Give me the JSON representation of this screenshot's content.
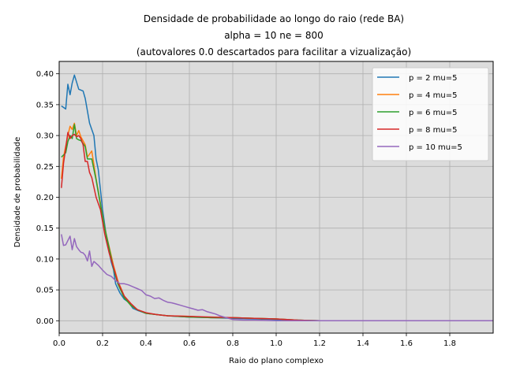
{
  "chart_data": {
    "type": "line",
    "title_lines": [
      "Densidade de probabilidade ao longo do raio (rede BA)",
      "alpha = 10 ne = 800",
      "(autovalores 0.0 descartados para facilitar a vizualização)"
    ],
    "xlabel": "Raio do plano complexo",
    "ylabel": "Densidade de probabilidade",
    "xlim": [
      0.0,
      2.0
    ],
    "ylim": [
      -0.02,
      0.42
    ],
    "xticks": [
      "0.0",
      "0.2",
      "0.4",
      "0.6",
      "0.8",
      "1.0",
      "1.2",
      "1.4",
      "1.6",
      "1.8"
    ],
    "yticks": [
      "0.00",
      "0.05",
      "0.10",
      "0.15",
      "0.20",
      "0.25",
      "0.30",
      "0.35",
      "0.40"
    ],
    "grid": true,
    "background": "#dcdcdc",
    "grid_color": "#b0b0b0",
    "legend_position": "top-right",
    "series": [
      {
        "name": "p = 2 mu=5",
        "color": "#1f77b4",
        "x": [
          0.01,
          0.03,
          0.04,
          0.05,
          0.06,
          0.07,
          0.09,
          0.11,
          0.12,
          0.14,
          0.16,
          0.17,
          0.18,
          0.2,
          0.22,
          0.24,
          0.25,
          0.26,
          0.28,
          0.3,
          0.32,
          0.34,
          0.36,
          0.4,
          0.5,
          0.6,
          0.7,
          0.8,
          0.9,
          1.0,
          1.2,
          1.4,
          1.6,
          1.8,
          2.0
        ],
        "y": [
          0.348,
          0.343,
          0.383,
          0.366,
          0.385,
          0.398,
          0.375,
          0.372,
          0.36,
          0.32,
          0.3,
          0.262,
          0.245,
          0.18,
          0.13,
          0.095,
          0.083,
          0.06,
          0.045,
          0.035,
          0.03,
          0.02,
          0.017,
          0.012,
          0.008,
          0.006,
          0.005,
          0.004,
          0.003,
          0.002,
          0.0,
          0.0,
          0.0,
          0.0,
          0.0
        ]
      },
      {
        "name": "p = 4 mu=5",
        "color": "#ff7f0e",
        "x": [
          0.01,
          0.02,
          0.04,
          0.05,
          0.06,
          0.07,
          0.08,
          0.09,
          0.1,
          0.12,
          0.13,
          0.15,
          0.17,
          0.19,
          0.21,
          0.23,
          0.25,
          0.27,
          0.3,
          0.33,
          0.36,
          0.4,
          0.45,
          0.5,
          0.6,
          0.7,
          0.8,
          0.9,
          1.0,
          1.1,
          1.2,
          1.4,
          1.6,
          1.8,
          2.0
        ],
        "y": [
          0.23,
          0.265,
          0.3,
          0.315,
          0.31,
          0.32,
          0.3,
          0.308,
          0.298,
          0.285,
          0.265,
          0.275,
          0.23,
          0.19,
          0.15,
          0.12,
          0.09,
          0.065,
          0.04,
          0.025,
          0.018,
          0.012,
          0.01,
          0.008,
          0.007,
          0.005,
          0.005,
          0.004,
          0.003,
          0.001,
          0.0,
          0.0,
          0.0,
          0.0,
          0.0
        ]
      },
      {
        "name": "p = 6 mu=5",
        "color": "#2ca02c",
        "x": [
          0.01,
          0.03,
          0.04,
          0.05,
          0.06,
          0.07,
          0.08,
          0.09,
          0.1,
          0.12,
          0.13,
          0.15,
          0.17,
          0.19,
          0.21,
          0.23,
          0.25,
          0.27,
          0.3,
          0.33,
          0.36,
          0.4,
          0.45,
          0.5,
          0.6,
          0.7,
          0.8,
          0.9,
          1.0,
          1.1,
          1.2,
          1.4,
          1.6,
          1.8,
          2.0
        ],
        "y": [
          0.265,
          0.272,
          0.29,
          0.3,
          0.295,
          0.318,
          0.295,
          0.293,
          0.292,
          0.282,
          0.262,
          0.262,
          0.228,
          0.188,
          0.15,
          0.118,
          0.085,
          0.06,
          0.037,
          0.025,
          0.018,
          0.012,
          0.01,
          0.008,
          0.006,
          0.005,
          0.005,
          0.004,
          0.003,
          0.001,
          0.0,
          0.0,
          0.0,
          0.0,
          0.0
        ]
      },
      {
        "name": "p = 8 mu=5",
        "color": "#d62728",
        "x": [
          0.01,
          0.02,
          0.03,
          0.04,
          0.05,
          0.06,
          0.07,
          0.08,
          0.09,
          0.1,
          0.11,
          0.12,
          0.13,
          0.14,
          0.15,
          0.17,
          0.19,
          0.21,
          0.23,
          0.25,
          0.27,
          0.3,
          0.33,
          0.36,
          0.4,
          0.45,
          0.5,
          0.6,
          0.7,
          0.8,
          0.9,
          1.0,
          1.1,
          1.2,
          1.4,
          1.6,
          1.8,
          2.0
        ],
        "y": [
          0.215,
          0.255,
          0.28,
          0.305,
          0.295,
          0.3,
          0.302,
          0.298,
          0.3,
          0.295,
          0.285,
          0.258,
          0.258,
          0.24,
          0.232,
          0.2,
          0.18,
          0.14,
          0.11,
          0.087,
          0.063,
          0.04,
          0.028,
          0.018,
          0.013,
          0.01,
          0.008,
          0.007,
          0.006,
          0.005,
          0.004,
          0.003,
          0.001,
          0.0,
          0.0,
          0.0,
          0.0,
          0.0
        ]
      },
      {
        "name": "p = 10 mu=5",
        "color": "#9467bd",
        "x": [
          0.01,
          0.02,
          0.03,
          0.04,
          0.05,
          0.06,
          0.07,
          0.08,
          0.09,
          0.1,
          0.11,
          0.12,
          0.13,
          0.14,
          0.15,
          0.16,
          0.18,
          0.2,
          0.22,
          0.24,
          0.26,
          0.28,
          0.3,
          0.32,
          0.34,
          0.36,
          0.38,
          0.4,
          0.42,
          0.44,
          0.46,
          0.48,
          0.5,
          0.52,
          0.54,
          0.56,
          0.58,
          0.6,
          0.62,
          0.64,
          0.66,
          0.68,
          0.7,
          0.72,
          0.74,
          0.76,
          0.78,
          0.8,
          0.85,
          0.9,
          1.0,
          1.1,
          1.2,
          1.4,
          1.6,
          1.8,
          2.0
        ],
        "y": [
          0.14,
          0.122,
          0.123,
          0.13,
          0.137,
          0.115,
          0.133,
          0.12,
          0.115,
          0.111,
          0.11,
          0.106,
          0.097,
          0.113,
          0.088,
          0.096,
          0.09,
          0.082,
          0.075,
          0.072,
          0.065,
          0.06,
          0.06,
          0.058,
          0.055,
          0.052,
          0.049,
          0.042,
          0.04,
          0.036,
          0.037,
          0.033,
          0.03,
          0.029,
          0.027,
          0.025,
          0.023,
          0.021,
          0.019,
          0.017,
          0.018,
          0.015,
          0.013,
          0.011,
          0.008,
          0.006,
          0.004,
          0.002,
          0.001,
          0.001,
          0.0,
          0.0,
          0.0,
          0.0,
          0.0,
          0.0,
          0.0
        ]
      }
    ]
  }
}
